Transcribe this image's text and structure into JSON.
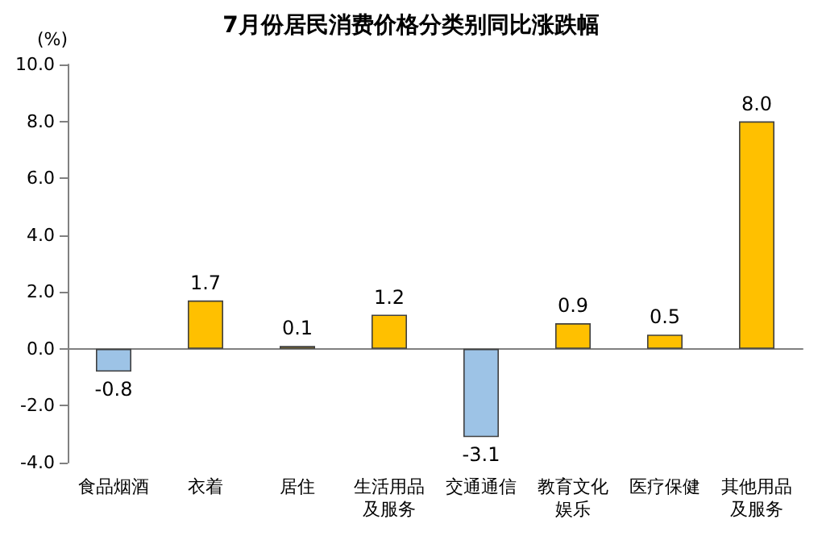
{
  "chart_data": {
    "type": "bar",
    "title": "7月份居民消费价格分类别同比涨跌幅",
    "ylabel": "(%)",
    "categories": [
      "食品烟酒",
      "衣着",
      "居住",
      "生活用品及服务",
      "交通通信",
      "教育文化娱乐",
      "医疗保健",
      "其他用品及服务"
    ],
    "values": [
      -0.8,
      1.7,
      0.1,
      1.2,
      -3.1,
      0.9,
      0.5,
      8.0
    ],
    "colors": [
      "#9dc3e6",
      "#ffc000",
      "#ffc000",
      "#ffc000",
      "#9dc3e6",
      "#ffc000",
      "#ffc000",
      "#ffc000"
    ],
    "value_labels": [
      "-0.8",
      "1.7",
      "0.1",
      "1.2",
      "-3.1",
      "0.9",
      "0.5",
      "8.0"
    ],
    "ylim": [
      -4,
      10
    ],
    "yticks": [
      {
        "value": -4,
        "label": "-4.0"
      },
      {
        "value": -2,
        "label": "-2.0"
      },
      {
        "value": 0,
        "label": "0.0"
      },
      {
        "value": 2,
        "label": "2.0"
      },
      {
        "value": 4,
        "label": "4.0"
      },
      {
        "value": 6,
        "label": "6.0"
      },
      {
        "value": 8,
        "label": "8.0"
      },
      {
        "value": 10,
        "label": "10.0"
      }
    ]
  }
}
